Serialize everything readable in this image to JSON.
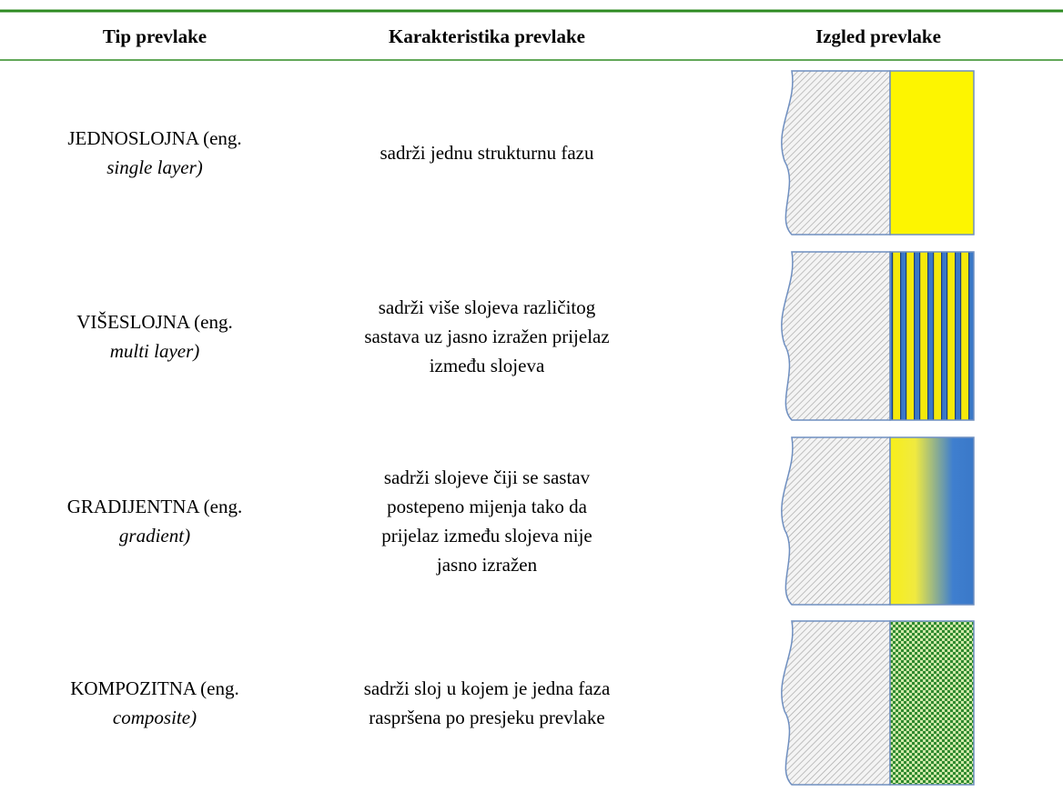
{
  "table": {
    "headers": [
      "Tip prevlake",
      "Karakteristika prevlake",
      "Izgled prevlake"
    ],
    "rows": [
      {
        "type": "JEDNOSLOJNA",
        "eng": "(eng.",
        "term": "single layer)",
        "description": [
          "sadrži jednu strukturnu fazu"
        ]
      },
      {
        "type": "VIŠESLOJNA",
        "eng": "(eng.",
        "term": "multi layer)",
        "description": [
          "sadrži više slojeva različitog",
          "sastava uz jasno izražen prijelaz",
          "između slojeva"
        ]
      },
      {
        "type": "GRADIJENTNA",
        "eng": "(eng.",
        "term": "gradient)",
        "description": [
          "sadrži slojeve čiji se sastav",
          "postepeno mijenja tako da",
          "prijelaz između slojeva nije",
          "jasno izražen"
        ]
      },
      {
        "type": "KOMPOZITNA",
        "eng": "(eng.",
        "term": "composite)",
        "description": [
          "sadrži sloj u kojem je jedna faza",
          "raspršena po presjeku prevlake"
        ]
      }
    ]
  }
}
